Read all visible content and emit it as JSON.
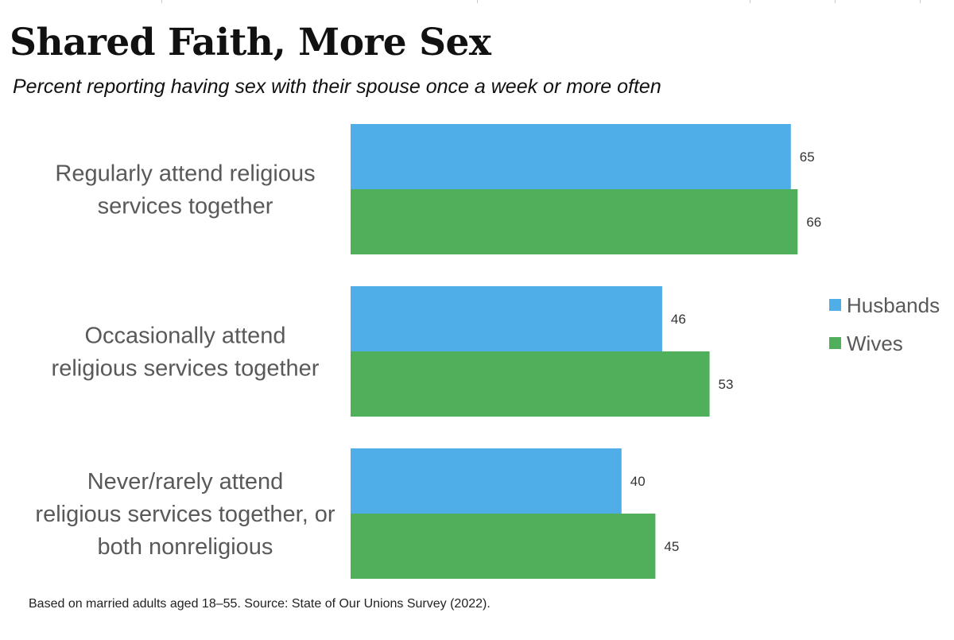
{
  "title": "Shared Faith, More Sex",
  "subtitle": "Percent reporting having sex with their spouse once a week or more often",
  "footnote": "Based on married adults aged 18–55. Source: State of Our Unions Survey (2022).",
  "colors": {
    "husbands": "#4FADE8",
    "wives": "#4FAF5B",
    "category_text": "#595959",
    "value_text": "#333333"
  },
  "chart_data": {
    "type": "bar",
    "orientation": "horizontal",
    "categories": [
      [
        "Regularly attend religious",
        "services together"
      ],
      [
        "Occasionally attend",
        "religious services together"
      ],
      [
        "Never/rarely attend",
        "religious services together, or",
        "both nonreligious"
      ]
    ],
    "series": [
      {
        "name": "Husbands",
        "values": [
          65,
          46,
          40
        ],
        "color": "#4FADE8"
      },
      {
        "name": "Wives",
        "values": [
          66,
          53,
          45
        ],
        "color": "#4FAF5B"
      }
    ],
    "xlim": [
      0,
      70
    ],
    "data_labels": true,
    "grid": false,
    "legend": "right"
  }
}
